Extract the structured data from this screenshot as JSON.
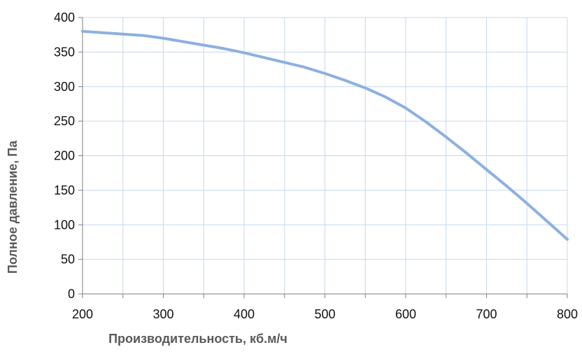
{
  "chart_data": {
    "type": "line",
    "title": "",
    "xlabel": "Производительность, кб.м/ч",
    "ylabel": "Полное  давление, Па",
    "xlim": [
      200,
      800
    ],
    "ylim": [
      0,
      400
    ],
    "x_ticks": [
      200,
      300,
      400,
      500,
      600,
      700,
      800
    ],
    "x_tick_labels": [
      "200",
      "300",
      "400",
      "500",
      "600",
      "700",
      "800"
    ],
    "x_minor_ticks": [
      250,
      350,
      450,
      550,
      650,
      750
    ],
    "y_ticks": [
      0,
      50,
      100,
      150,
      200,
      250,
      300,
      350,
      400
    ],
    "y_tick_labels": [
      "0",
      "50",
      "100",
      "150",
      "200",
      "250",
      "300",
      "350",
      "400"
    ],
    "grid": true,
    "legend": "none",
    "colors": {
      "line": "#8cb0e0",
      "grid": "#c5d8ee",
      "axis": "#7f7f7f"
    },
    "series": [
      {
        "x": [
          200,
          225,
          250,
          275,
          300,
          325,
          350,
          375,
          400,
          425,
          450,
          475,
          500,
          525,
          550,
          575,
          600,
          625,
          650,
          675,
          700,
          725,
          750,
          775,
          800
        ],
        "y": [
          380,
          378,
          376,
          374,
          370,
          365,
          360,
          355,
          349,
          342,
          335,
          328,
          319,
          309,
          298,
          285,
          269,
          249,
          227,
          204,
          180,
          156,
          131,
          105,
          79
        ]
      }
    ]
  }
}
